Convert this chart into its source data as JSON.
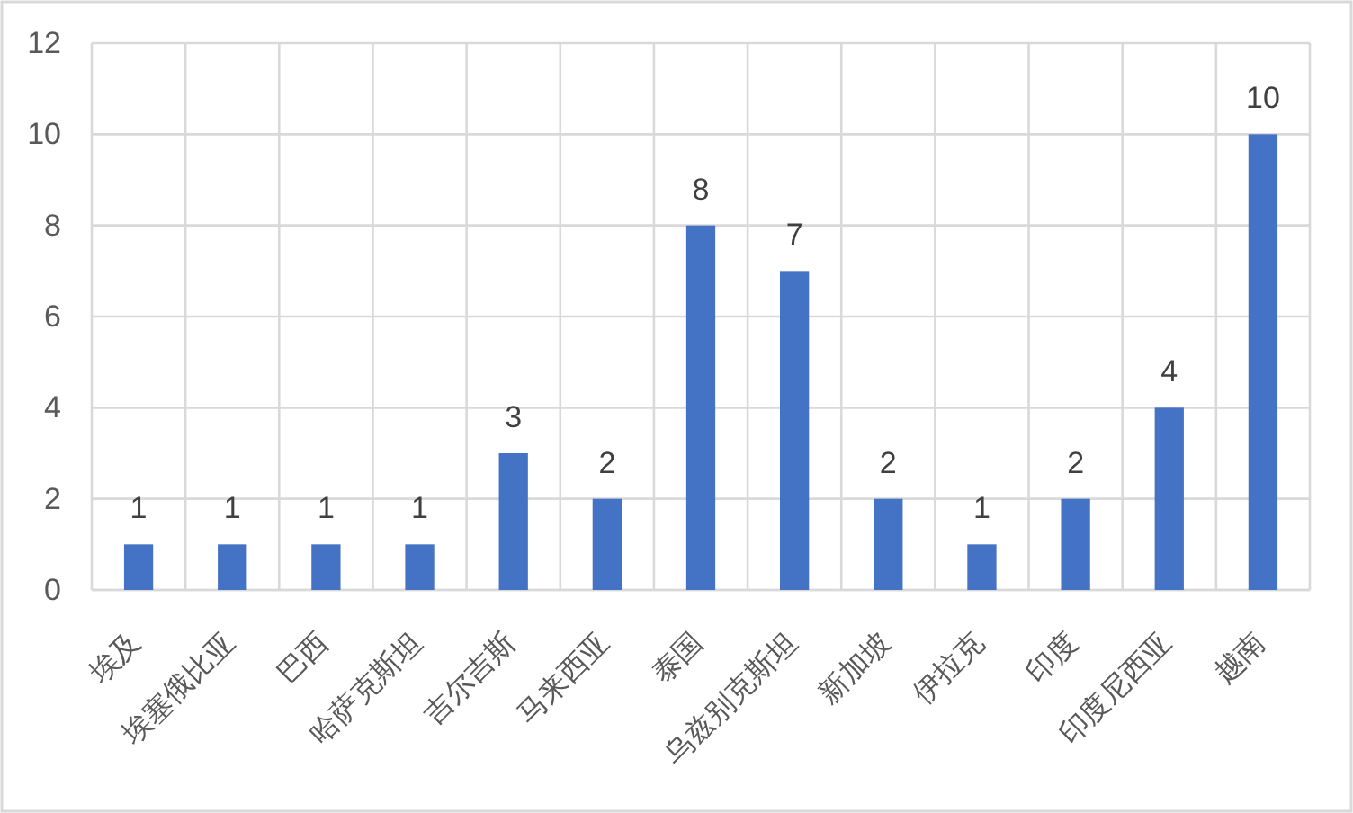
{
  "chart_data": {
    "type": "bar",
    "categories": [
      "埃及",
      "埃塞俄比亚",
      "巴西",
      "哈萨克斯坦",
      "吉尔吉斯",
      "马来西亚",
      "泰国",
      "乌兹别克斯坦",
      "新加坡",
      "伊拉克",
      "印度",
      "印度尼西亚",
      "越南"
    ],
    "values": [
      1,
      1,
      1,
      1,
      3,
      2,
      8,
      7,
      2,
      1,
      2,
      4,
      10
    ],
    "color": "#4472c4",
    "ylim": [
      0,
      12
    ],
    "yticks": [
      0,
      2,
      4,
      6,
      8,
      10,
      12
    ],
    "grid": true,
    "data_labels": true
  }
}
